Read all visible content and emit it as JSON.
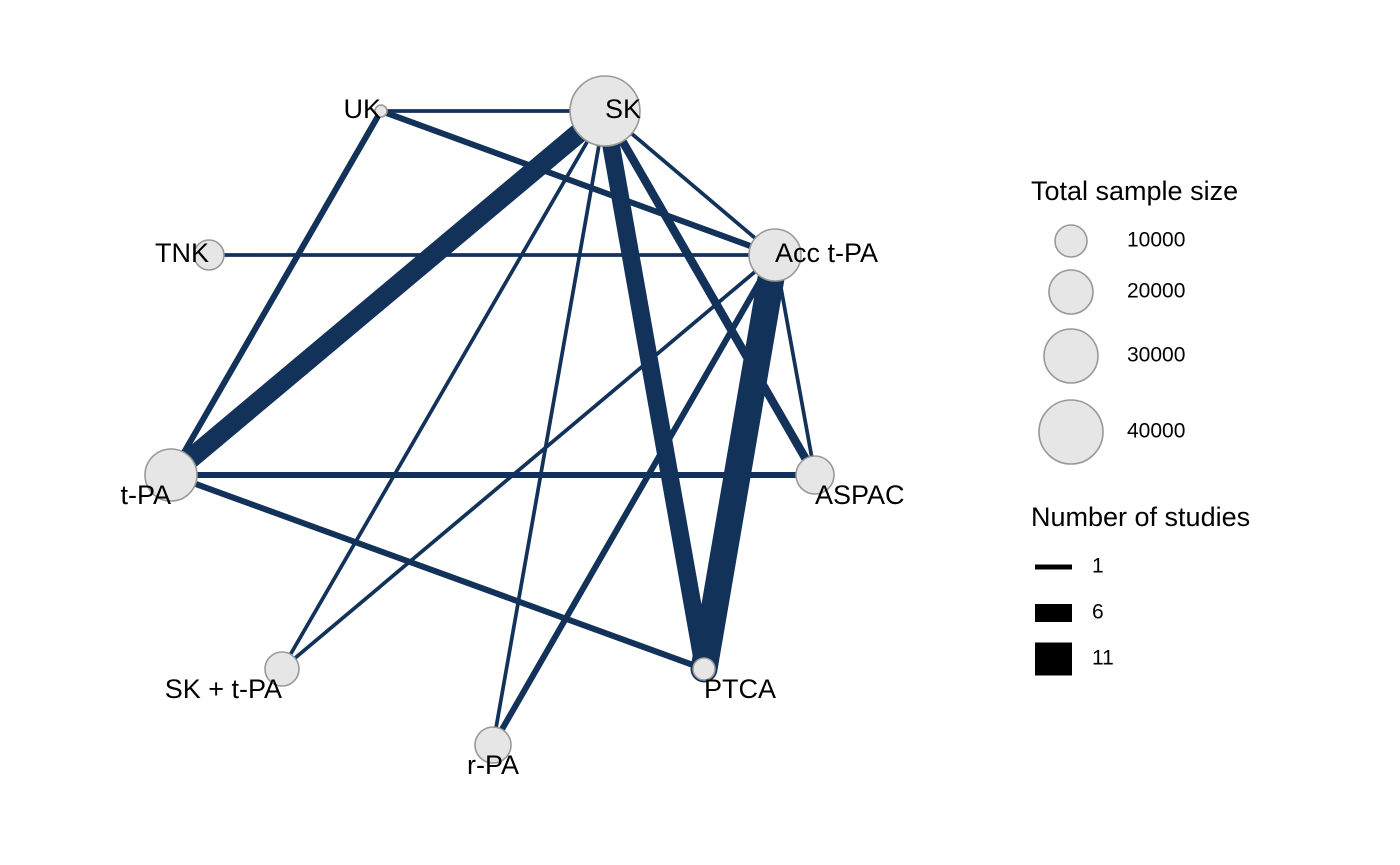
{
  "colors": {
    "edge": "#12325a",
    "node_fill": "#e6e6e6",
    "node_stroke": "#999999",
    "legend_key": "#000000"
  },
  "network": {
    "nodes": [
      {
        "id": "SK",
        "label": "SK"
      },
      {
        "id": "UK",
        "label": "UK"
      },
      {
        "id": "TNK",
        "label": "TNK"
      },
      {
        "id": "Acc t-PA",
        "label": "Acc t-PA"
      },
      {
        "id": "t-PA",
        "label": "t-PA"
      },
      {
        "id": "ASPAC",
        "label": "ASPAC"
      },
      {
        "id": "SK + t-PA",
        "label": "SK + t-PA"
      },
      {
        "id": "PTCA",
        "label": "PTCA"
      },
      {
        "id": "r-PA",
        "label": "r-PA"
      }
    ],
    "edges": [
      {
        "from": "UK",
        "to": "SK",
        "studies": 1
      },
      {
        "from": "UK",
        "to": "Acc t-PA",
        "studies": 2
      },
      {
        "from": "UK",
        "to": "t-PA",
        "studies": 2
      },
      {
        "from": "SK",
        "to": "t-PA",
        "studies": 8
      },
      {
        "from": "SK",
        "to": "Acc t-PA",
        "studies": 1
      },
      {
        "from": "SK",
        "to": "ASPAC",
        "studies": 3
      },
      {
        "from": "SK",
        "to": "PTCA",
        "studies": 7
      },
      {
        "from": "SK",
        "to": "SK + t-PA",
        "studies": 1
      },
      {
        "from": "SK",
        "to": "r-PA",
        "studies": 1
      },
      {
        "from": "TNK",
        "to": "Acc t-PA",
        "studies": 1
      },
      {
        "from": "Acc t-PA",
        "to": "PTCA",
        "studies": 11
      },
      {
        "from": "Acc t-PA",
        "to": "ASPAC",
        "studies": 1
      },
      {
        "from": "Acc t-PA",
        "to": "r-PA",
        "studies": 2
      },
      {
        "from": "Acc t-PA",
        "to": "SK + t-PA",
        "studies": 1
      },
      {
        "from": "t-PA",
        "to": "ASPAC",
        "studies": 2
      },
      {
        "from": "t-PA",
        "to": "PTCA",
        "studies": 2
      }
    ]
  },
  "legend": {
    "size_title": "Total sample size",
    "size_items": [
      {
        "value": 10000,
        "label": "10000"
      },
      {
        "value": 20000,
        "label": "20000"
      },
      {
        "value": 30000,
        "label": "30000"
      },
      {
        "value": 40000,
        "label": "40000"
      }
    ],
    "studies_title": "Number of studies",
    "studies_items": [
      {
        "value": 1,
        "label": "1"
      },
      {
        "value": 6,
        "label": "6"
      },
      {
        "value": 11,
        "label": "11"
      }
    ]
  }
}
